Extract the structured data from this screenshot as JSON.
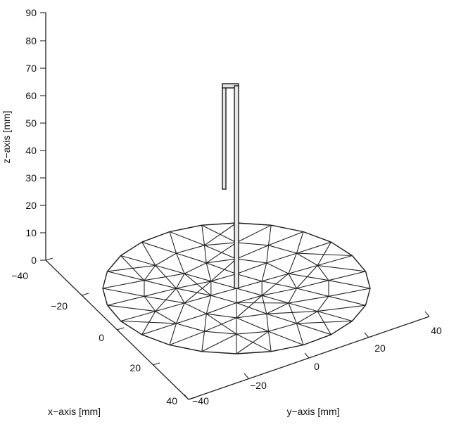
{
  "axes": {
    "x_label": "x−axis [mm]",
    "y_label": "y−axis [mm]",
    "z_label": "z−axis [mm]",
    "x_ticks": [
      "−40",
      "−20",
      "0",
      "20",
      "40"
    ],
    "y_ticks": [
      "−40",
      "−20",
      "0",
      "20",
      "40"
    ],
    "z_ticks": [
      "0",
      "10",
      "20",
      "30",
      "40",
      "50",
      "60",
      "70",
      "80",
      "90"
    ]
  },
  "colors": {
    "line": "#222222",
    "background": "#ffffff"
  }
}
